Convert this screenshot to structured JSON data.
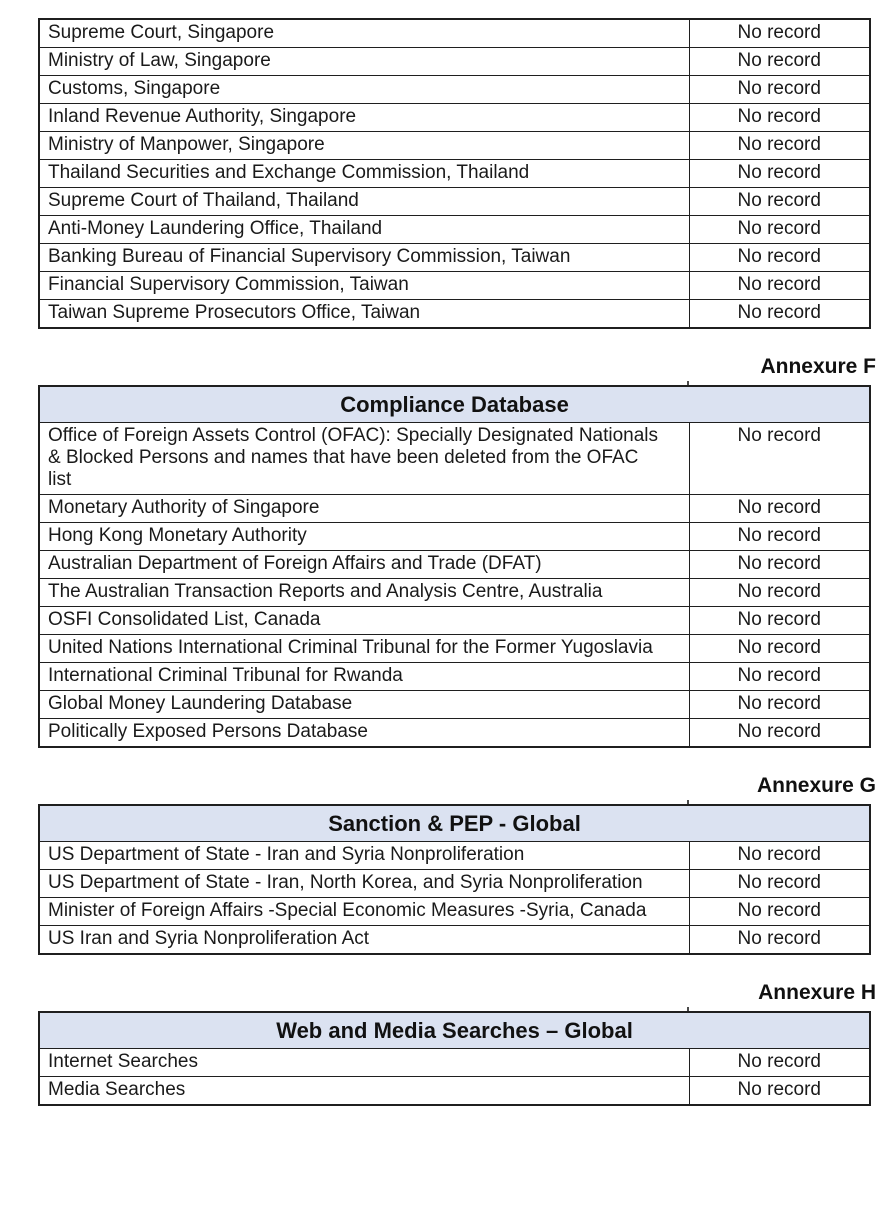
{
  "page": {
    "background": "#ffffff",
    "header_bg": "#dbe2f1",
    "border_color": "#1f1f1f",
    "result_value": "No record"
  },
  "sections": [
    {
      "id": "screening-sources-continued",
      "annexure": null,
      "header": null,
      "rows": [
        {
          "source": "Supreme Court, Singapore",
          "result": "No record"
        },
        {
          "source": "Ministry of Law, Singapore",
          "result": "No record"
        },
        {
          "source": "Customs, Singapore",
          "result": "No record"
        },
        {
          "source": "Inland Revenue Authority, Singapore",
          "result": "No record"
        },
        {
          "source": "Ministry of Manpower, Singapore",
          "result": "No record"
        },
        {
          "source": "Thailand Securities and Exchange Commission, Thailand",
          "result": "No record"
        },
        {
          "source": "Supreme Court of Thailand, Thailand",
          "result": "No record"
        },
        {
          "source": "Anti-Money Laundering Office, Thailand",
          "result": "No record"
        },
        {
          "source": "Banking Bureau of Financial Supervisory Commission, Taiwan",
          "result": "No record"
        },
        {
          "source": "Financial Supervisory Commission, Taiwan",
          "result": "No record"
        },
        {
          "source": "Taiwan Supreme Prosecutors Office, Taiwan",
          "result": "No record"
        }
      ]
    },
    {
      "id": "compliance-database",
      "annexure": "Annexure F",
      "header": "Compliance Database",
      "rows": [
        {
          "source": "Office of Foreign Assets Control (OFAC): Specially Designated Nationals & Blocked Persons and names that have been deleted from the OFAC list",
          "result": "No record"
        },
        {
          "source": "Monetary Authority of Singapore",
          "result": "No record"
        },
        {
          "source": "Hong Kong Monetary Authority",
          "result": "No record"
        },
        {
          "source": "Australian Department of Foreign Affairs and Trade (DFAT)",
          "result": "No record"
        },
        {
          "source": "The Australian Transaction Reports and Analysis Centre, Australia",
          "result": "No record"
        },
        {
          "source": "OSFI Consolidated List, Canada",
          "result": "No record"
        },
        {
          "source": "United Nations International Criminal Tribunal for the Former Yugoslavia",
          "result": "No record"
        },
        {
          "source": "International Criminal Tribunal for Rwanda",
          "result": "No record"
        },
        {
          "source": "Global Money Laundering Database",
          "result": "No record"
        },
        {
          "source": "Politically Exposed Persons Database",
          "result": "No record"
        }
      ]
    },
    {
      "id": "sanction-pep-global",
      "annexure": "Annexure G",
      "header": "Sanction & PEP - Global",
      "rows": [
        {
          "source": "US Department of State - Iran and Syria Nonproliferation",
          "result": "No record"
        },
        {
          "source": "US Department of State - Iran, North Korea, and Syria Nonproliferation",
          "result": "No record"
        },
        {
          "source": "Minister of Foreign Affairs -Special Economic Measures -Syria, Canada",
          "result": "No record"
        },
        {
          "source": "US Iran and Syria Nonproliferation Act",
          "result": "No record"
        }
      ]
    },
    {
      "id": "web-media-searches-global",
      "annexure": "Annexure H",
      "header": "Web and Media Searches – Global",
      "rows": [
        {
          "source": "Internet Searches",
          "result": "No record"
        },
        {
          "source": "Media Searches",
          "result": "No record"
        }
      ]
    }
  ]
}
